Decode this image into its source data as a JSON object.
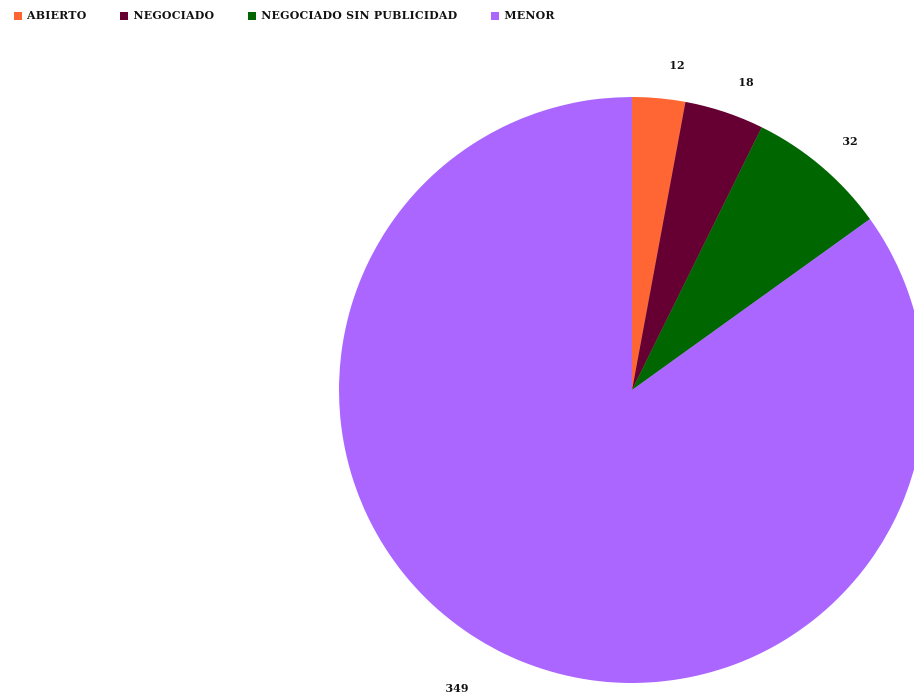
{
  "chart_data": {
    "type": "pie",
    "title": "",
    "legend_position": "top-left",
    "categories": [
      "ABIERTO",
      "NEGOCIADO",
      "NEGOCIADO SIN PUBLICIDAD",
      "MENOR"
    ],
    "values": [
      12,
      18,
      32,
      349
    ],
    "colors": [
      "#FF6633",
      "#660033",
      "#006600",
      "#AA66FF"
    ],
    "start_angle": "12 o'clock",
    "direction": "clockwise"
  }
}
